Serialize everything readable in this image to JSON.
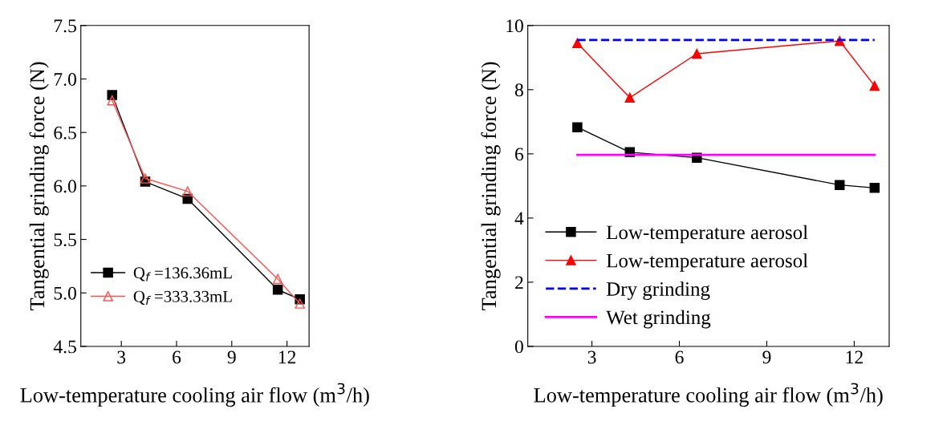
{
  "chart_data": [
    {
      "type": "line",
      "xlabel": "Low-temperature cooling air flow (m$^{3}$/h)",
      "ylabel": "Tangential grinding force (N)",
      "x": [
        2.5,
        4.3,
        6.6,
        11.5,
        12.7
      ],
      "xlim": [
        0.8,
        13.2
      ],
      "xticks": [
        3,
        6,
        9,
        12
      ],
      "ylim": [
        4.5,
        7.5
      ],
      "yticks": [
        4.5,
        {
          "value": 5,
          "label": "5.0"
        },
        5.5,
        {
          "value": 6,
          "label": "6.0"
        },
        6.5,
        {
          "value": 7,
          "label": "7.0"
        },
        7.5
      ],
      "legend": "bottom left",
      "grid": false,
      "series": [
        {
          "name": "Q$_{f}$ =136.36mL",
          "color": "#000000",
          "marker": "square",
          "values": [
            6.85,
            6.04,
            5.88,
            5.03,
            4.94
          ]
        },
        {
          "name": "Q$_{f}$ =333.33mL",
          "color": "#ff5050",
          "marker": "triangle_open",
          "values": [
            6.8,
            6.07,
            5.95,
            5.13,
            4.9
          ]
        }
      ]
    },
    {
      "type": "line",
      "xlabel": "Low-temperature cooling air flow (m$^{3}$/h)",
      "ylabel": "Tangential grinding force (N)",
      "x": [
        2.5,
        4.3,
        6.6,
        11.5,
        12.7
      ],
      "xlim": [
        0.8,
        13.2
      ],
      "xticks": [
        3,
        6,
        9,
        12
      ],
      "ylim": [
        0,
        10
      ],
      "yticks": [
        0,
        2,
        4,
        6,
        8,
        10
      ],
      "legend": "bottom",
      "grid": false,
      "series": [
        {
          "name": "Low-temperature aerosol",
          "color": "#000000",
          "marker": "square",
          "values": [
            6.83,
            6.05,
            5.88,
            5.03,
            4.94
          ]
        },
        {
          "name": "Low-temperature aerosol",
          "color": "#ff0000",
          "marker": "triangle",
          "values": [
            9.45,
            7.75,
            9.12,
            9.52,
            8.12
          ]
        },
        {
          "name": "Dry grinding",
          "color": "#0000ff",
          "marker": "none",
          "line_style": "dashed",
          "values": [
            9.55,
            9.55,
            9.55,
            9.55,
            9.55
          ]
        },
        {
          "name": "Wet grinding",
          "color": "#ff00ff",
          "marker": "none",
          "values": [
            5.97,
            5.97,
            5.97,
            5.97,
            5.97
          ]
        }
      ]
    }
  ]
}
